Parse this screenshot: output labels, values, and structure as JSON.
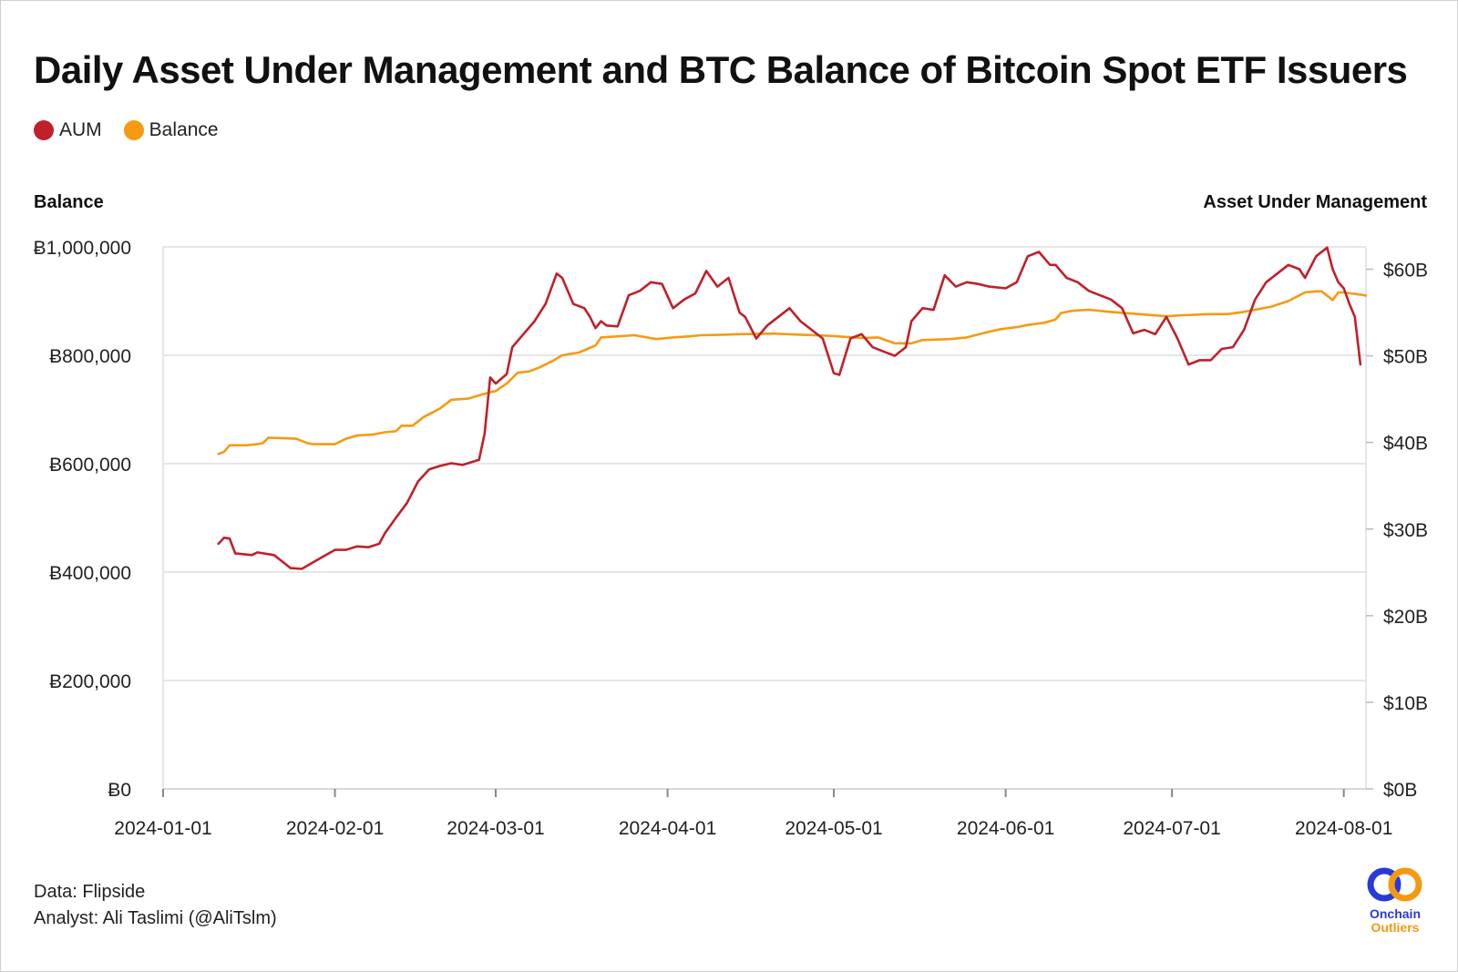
{
  "title": "Daily Asset Under Management and BTC Balance of Bitcoin Spot ETF Issuers",
  "legend": [
    {
      "name": "AUM",
      "color": "#c0202a"
    },
    {
      "name": "Balance",
      "color": "#f59a12"
    }
  ],
  "footer": {
    "data_source": "Data: Flipside",
    "analyst": "Analyst: Ali Taslimi (@AliTslm)"
  },
  "logo": {
    "line1": "Onchain",
    "line2": "Outliers"
  },
  "chart_data": {
    "type": "line",
    "title": "Daily Asset Under Management and BTC Balance of Bitcoin Spot ETF Issuers",
    "grid": true,
    "legend_position": "top-left",
    "x_axis": {
      "type": "date",
      "range": [
        "2024-01-01",
        "2024-08-05"
      ],
      "ticks": [
        "2024-01-01",
        "2024-02-01",
        "2024-03-01",
        "2024-04-01",
        "2024-05-01",
        "2024-06-01",
        "2024-07-01",
        "2024-08-01"
      ]
    },
    "y_left": {
      "label": "Balance",
      "range": [
        0,
        1000000
      ],
      "ticks": [
        0,
        200000,
        400000,
        600000,
        800000,
        1000000
      ],
      "tick_labels": [
        "Ƀ0",
        "Ƀ200,000",
        "Ƀ400,000",
        "Ƀ600,000",
        "Ƀ800,000",
        "Ƀ1,000,000"
      ]
    },
    "y_right": {
      "label": "Asset Under Management",
      "range": [
        0,
        65
      ],
      "unit": "billion USD",
      "ticks": [
        0,
        10,
        20,
        30,
        40,
        50,
        60
      ],
      "tick_labels": [
        "$0B",
        "$10B",
        "$20B",
        "$30B",
        "$40B",
        "$50B",
        "$60B"
      ]
    },
    "series": [
      {
        "name": "Balance",
        "axis": "left",
        "color": "#f59a12",
        "points": [
          [
            "2024-01-11",
            618000
          ],
          [
            "2024-01-12",
            622000
          ],
          [
            "2024-01-13",
            634000
          ],
          [
            "2024-01-16",
            634000
          ],
          [
            "2024-01-18",
            636000
          ],
          [
            "2024-01-19",
            638000
          ],
          [
            "2024-01-20",
            648000
          ],
          [
            "2024-01-25",
            646000
          ],
          [
            "2024-01-27",
            638000
          ],
          [
            "2024-01-28",
            636000
          ],
          [
            "2024-02-01",
            636000
          ],
          [
            "2024-02-03",
            646000
          ],
          [
            "2024-02-05",
            652000
          ],
          [
            "2024-02-08",
            654000
          ],
          [
            "2024-02-10",
            658000
          ],
          [
            "2024-02-12",
            660000
          ],
          [
            "2024-02-13",
            670000
          ],
          [
            "2024-02-15",
            670000
          ],
          [
            "2024-02-17",
            686000
          ],
          [
            "2024-02-20",
            702000
          ],
          [
            "2024-02-22",
            718000
          ],
          [
            "2024-02-25",
            720000
          ],
          [
            "2024-02-27",
            726000
          ],
          [
            "2024-02-29",
            732000
          ],
          [
            "2024-03-01",
            734000
          ],
          [
            "2024-03-03",
            748000
          ],
          [
            "2024-03-05",
            768000
          ],
          [
            "2024-03-07",
            770000
          ],
          [
            "2024-03-09",
            778000
          ],
          [
            "2024-03-11",
            788000
          ],
          [
            "2024-03-13",
            800000
          ],
          [
            "2024-03-16",
            805000
          ],
          [
            "2024-03-19",
            818000
          ],
          [
            "2024-03-20",
            833000
          ],
          [
            "2024-03-26",
            837000
          ],
          [
            "2024-03-30",
            830000
          ],
          [
            "2024-04-02",
            833000
          ],
          [
            "2024-04-05",
            835000
          ],
          [
            "2024-04-07",
            837000
          ],
          [
            "2024-04-11",
            838000
          ],
          [
            "2024-04-14",
            839000
          ],
          [
            "2024-04-20",
            840000
          ],
          [
            "2024-04-25",
            838000
          ],
          [
            "2024-04-30",
            836000
          ],
          [
            "2024-05-03",
            834000
          ],
          [
            "2024-05-06",
            832000
          ],
          [
            "2024-05-09",
            833000
          ],
          [
            "2024-05-12",
            822000
          ],
          [
            "2024-05-15",
            822000
          ],
          [
            "2024-05-17",
            828000
          ],
          [
            "2024-05-22",
            830000
          ],
          [
            "2024-05-25",
            833000
          ],
          [
            "2024-05-28",
            841000
          ],
          [
            "2024-05-31",
            848000
          ],
          [
            "2024-06-03",
            852000
          ],
          [
            "2024-06-05",
            856000
          ],
          [
            "2024-06-08",
            860000
          ],
          [
            "2024-06-10",
            866000
          ],
          [
            "2024-06-11",
            878000
          ],
          [
            "2024-06-13",
            882000
          ],
          [
            "2024-06-16",
            884000
          ],
          [
            "2024-06-20",
            880000
          ],
          [
            "2024-06-25",
            876000
          ],
          [
            "2024-06-30",
            872000
          ],
          [
            "2024-07-03",
            874000
          ],
          [
            "2024-07-08",
            876000
          ],
          [
            "2024-07-11",
            876000
          ],
          [
            "2024-07-14",
            880000
          ],
          [
            "2024-07-16",
            884000
          ],
          [
            "2024-07-19",
            890000
          ],
          [
            "2024-07-22",
            900000
          ],
          [
            "2024-07-25",
            916000
          ],
          [
            "2024-07-27",
            918000
          ],
          [
            "2024-07-28",
            918000
          ],
          [
            "2024-07-30",
            902000
          ],
          [
            "2024-07-31",
            916000
          ],
          [
            "2024-08-01",
            916000
          ],
          [
            "2024-08-04",
            912000
          ],
          [
            "2024-08-05",
            910000
          ]
        ]
      },
      {
        "name": "AUM",
        "axis": "right",
        "color": "#c0202a",
        "points": [
          [
            "2024-01-11",
            28.3
          ],
          [
            "2024-01-12",
            29.0
          ],
          [
            "2024-01-13",
            28.9
          ],
          [
            "2024-01-14",
            27.2
          ],
          [
            "2024-01-17",
            27.0
          ],
          [
            "2024-01-18",
            27.3
          ],
          [
            "2024-01-21",
            27.0
          ],
          [
            "2024-01-22",
            26.5
          ],
          [
            "2024-01-24",
            25.5
          ],
          [
            "2024-01-26",
            25.4
          ],
          [
            "2024-01-29",
            26.5
          ],
          [
            "2024-02-01",
            27.6
          ],
          [
            "2024-02-03",
            27.6
          ],
          [
            "2024-02-05",
            28.0
          ],
          [
            "2024-02-07",
            27.9
          ],
          [
            "2024-02-09",
            28.3
          ],
          [
            "2024-02-10",
            29.5
          ],
          [
            "2024-02-12",
            31.3
          ],
          [
            "2024-02-14",
            33.0
          ],
          [
            "2024-02-16",
            35.5
          ],
          [
            "2024-02-18",
            36.9
          ],
          [
            "2024-02-20",
            37.3
          ],
          [
            "2024-02-22",
            37.6
          ],
          [
            "2024-02-24",
            37.4
          ],
          [
            "2024-02-27",
            38.0
          ],
          [
            "2024-02-28",
            41.0
          ],
          [
            "2024-02-29",
            47.5
          ],
          [
            "2024-03-01",
            46.8
          ],
          [
            "2024-03-03",
            47.9
          ],
          [
            "2024-03-04",
            51.0
          ],
          [
            "2024-03-06",
            52.5
          ],
          [
            "2024-03-08",
            54.0
          ],
          [
            "2024-03-10",
            56.0
          ],
          [
            "2024-03-12",
            59.5
          ],
          [
            "2024-03-13",
            59.0
          ],
          [
            "2024-03-15",
            56.0
          ],
          [
            "2024-03-17",
            55.5
          ],
          [
            "2024-03-18",
            54.5
          ],
          [
            "2024-03-19",
            53.2
          ],
          [
            "2024-03-20",
            54.0
          ],
          [
            "2024-03-21",
            53.5
          ],
          [
            "2024-03-23",
            53.4
          ],
          [
            "2024-03-25",
            57.0
          ],
          [
            "2024-03-27",
            57.5
          ],
          [
            "2024-03-29",
            58.5
          ],
          [
            "2024-03-31",
            58.3
          ],
          [
            "2024-04-02",
            55.5
          ],
          [
            "2024-04-04",
            56.5
          ],
          [
            "2024-04-06",
            57.2
          ],
          [
            "2024-04-08",
            59.8
          ],
          [
            "2024-04-10",
            58.0
          ],
          [
            "2024-04-12",
            59.0
          ],
          [
            "2024-04-14",
            55.0
          ],
          [
            "2024-04-15",
            54.5
          ],
          [
            "2024-04-17",
            52.0
          ],
          [
            "2024-04-19",
            53.5
          ],
          [
            "2024-04-21",
            54.5
          ],
          [
            "2024-04-23",
            55.5
          ],
          [
            "2024-04-25",
            54.0
          ],
          [
            "2024-04-27",
            53.0
          ],
          [
            "2024-04-29",
            52.0
          ],
          [
            "2024-05-01",
            48.0
          ],
          [
            "2024-05-02",
            47.8
          ],
          [
            "2024-05-04",
            52.0
          ],
          [
            "2024-05-06",
            52.5
          ],
          [
            "2024-05-08",
            51.0
          ],
          [
            "2024-05-10",
            50.5
          ],
          [
            "2024-05-12",
            50.0
          ],
          [
            "2024-05-14",
            51.0
          ],
          [
            "2024-05-15",
            54.0
          ],
          [
            "2024-05-17",
            55.5
          ],
          [
            "2024-05-19",
            55.3
          ],
          [
            "2024-05-21",
            59.3
          ],
          [
            "2024-05-23",
            58.0
          ],
          [
            "2024-05-25",
            58.5
          ],
          [
            "2024-05-27",
            58.3
          ],
          [
            "2024-05-29",
            58.0
          ],
          [
            "2024-06-01",
            57.8
          ],
          [
            "2024-06-03",
            58.5
          ],
          [
            "2024-06-05",
            61.5
          ],
          [
            "2024-06-07",
            62.0
          ],
          [
            "2024-06-09",
            60.5
          ],
          [
            "2024-06-10",
            60.5
          ],
          [
            "2024-06-12",
            59.0
          ],
          [
            "2024-06-14",
            58.5
          ],
          [
            "2024-06-16",
            57.5
          ],
          [
            "2024-06-18",
            57.0
          ],
          [
            "2024-06-20",
            56.5
          ],
          [
            "2024-06-22",
            55.5
          ],
          [
            "2024-06-24",
            52.6
          ],
          [
            "2024-06-26",
            53.0
          ],
          [
            "2024-06-28",
            52.5
          ],
          [
            "2024-06-30",
            54.5
          ],
          [
            "2024-07-02",
            52.0
          ],
          [
            "2024-07-04",
            49.0
          ],
          [
            "2024-07-06",
            49.5
          ],
          [
            "2024-07-08",
            49.5
          ],
          [
            "2024-07-10",
            50.8
          ],
          [
            "2024-07-12",
            51.0
          ],
          [
            "2024-07-14",
            53.0
          ],
          [
            "2024-07-16",
            56.5
          ],
          [
            "2024-07-18",
            58.5
          ],
          [
            "2024-07-20",
            59.5
          ],
          [
            "2024-07-22",
            60.5
          ],
          [
            "2024-07-24",
            60.0
          ],
          [
            "2024-07-25",
            59.0
          ],
          [
            "2024-07-27",
            61.5
          ],
          [
            "2024-07-29",
            62.5
          ],
          [
            "2024-07-30",
            60.0
          ],
          [
            "2024-07-31",
            58.5
          ],
          [
            "2024-08-01",
            57.8
          ],
          [
            "2024-08-02",
            56.0
          ],
          [
            "2024-08-03",
            54.5
          ],
          [
            "2024-08-04",
            49.0
          ]
        ]
      }
    ]
  }
}
